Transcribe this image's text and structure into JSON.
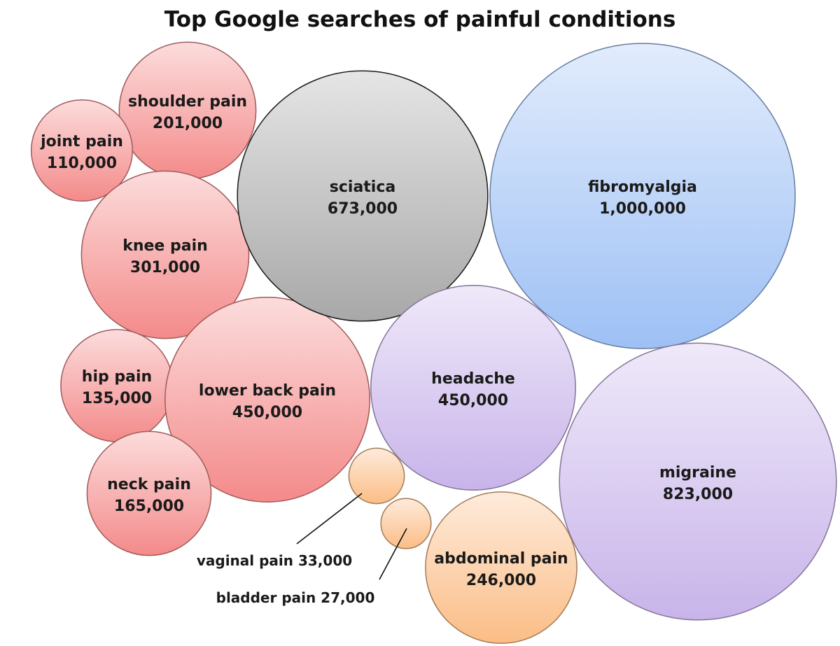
{
  "chart_data": {
    "type": "bubble",
    "title": "Top Google searches of painful conditions",
    "series": [
      {
        "name": "",
        "color": "#f48a8a",
        "points": [
          {
            "label": "shoulder pain",
            "value_label": "201,000",
            "value": 201000
          },
          {
            "label": "joint pain",
            "value_label": "110,000",
            "value": 110000
          },
          {
            "label": "knee pain",
            "value_label": "301,000",
            "value": 301000
          },
          {
            "label": "hip pain",
            "value_label": "135,000",
            "value": 135000
          },
          {
            "label": "lower back pain",
            "value_label": "450,000",
            "value": 450000
          },
          {
            "label": "neck pain",
            "value_label": "165,000",
            "value": 165000
          }
        ]
      },
      {
        "name": "",
        "color": "#a8a8a8",
        "points": [
          {
            "label": "sciatica",
            "value_label": "673,000",
            "value": 673000
          }
        ]
      },
      {
        "name": "",
        "color": "#9dc0f5",
        "points": [
          {
            "label": "fibromyalgia",
            "value_label": "1,000,000",
            "value": 1000000
          }
        ]
      },
      {
        "name": "",
        "color": "#c8b4ea",
        "points": [
          {
            "label": "headache",
            "value_label": "450,000",
            "value": 450000
          },
          {
            "label": "migraine",
            "value_label": "823,000",
            "value": 823000
          }
        ]
      },
      {
        "name": "",
        "color": "#fbbd86",
        "points": [
          {
            "label": "abdominal pain",
            "value_label": "246,000",
            "value": 246000
          },
          {
            "label": "vaginal pain",
            "value_label": "33,000",
            "value": 33000,
            "callout": "vaginal pain 33,000"
          },
          {
            "label": "bladder pain",
            "value_label": "27,000",
            "value": 27000,
            "callout": "bladder pain 27,000"
          }
        ]
      }
    ]
  }
}
